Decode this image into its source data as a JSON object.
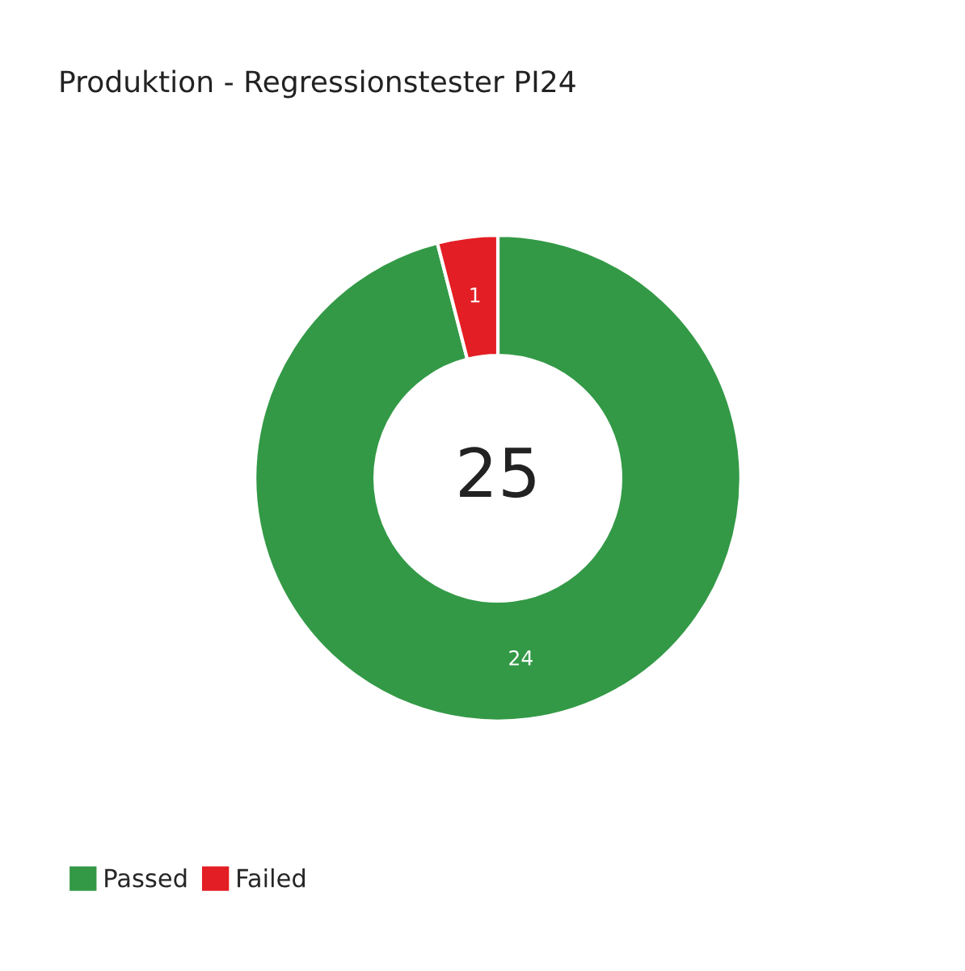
{
  "chart_data": {
    "type": "donut",
    "title": "Produktion - Regressionstester PI24",
    "categories": [
      "Passed",
      "Failed"
    ],
    "values": [
      24,
      1
    ],
    "colors": [
      "#339946",
      "#e31e24"
    ],
    "data_labels": true,
    "annotations": [
      "25"
    ],
    "legend": "bottom left"
  }
}
